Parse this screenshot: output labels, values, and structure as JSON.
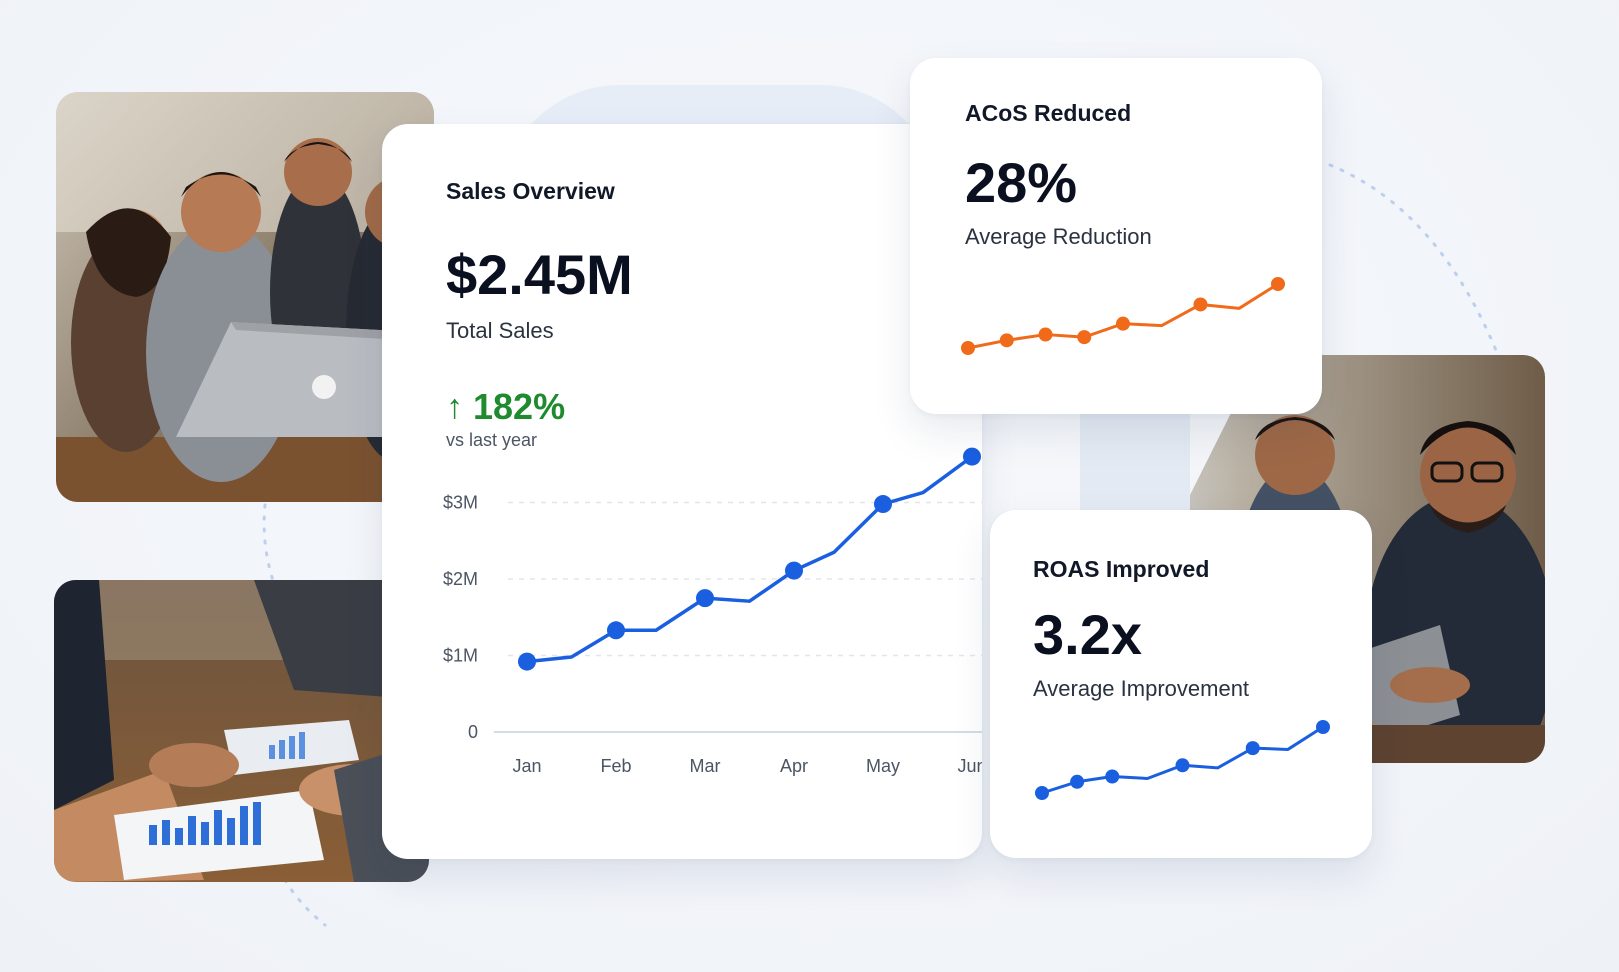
{
  "colors": {
    "primary_blue": "#1a5fe0",
    "accent_orange": "#f06a1a",
    "growth_green": "#1f8a2e",
    "text_dark": "#0b1020"
  },
  "sales_card": {
    "title": "Sales Overview",
    "value": "$2.45M",
    "value_label": "Total Sales",
    "growth": "182%",
    "growth_icon": "arrow-up-icon",
    "comparison": "vs last year"
  },
  "acos_card": {
    "title": "ACoS Reduced",
    "value": "28%",
    "label": "Average Reduction"
  },
  "roas_card": {
    "title": "ROAS Improved",
    "value": "3.2x",
    "label": "Average Improvement"
  },
  "chart_data": [
    {
      "type": "line",
      "categories": [
        "Jan",
        "Feb",
        "Mar",
        "Apr",
        "May",
        "Jun"
      ],
      "ylim": [
        0,
        3.5
      ],
      "y_ticks": [
        "0",
        "$1M",
        "$2M",
        "$3M"
      ],
      "grid": true,
      "series": [
        {
          "points": [
            {
              "x": 0.0,
              "y": 0.92,
              "marker": true
            },
            {
              "x": 0.5,
              "y": 0.98,
              "marker": false
            },
            {
              "x": 1.0,
              "y": 1.33,
              "marker": true
            },
            {
              "x": 1.45,
              "y": 1.33,
              "marker": false
            },
            {
              "x": 2.0,
              "y": 1.75,
              "marker": true
            },
            {
              "x": 2.5,
              "y": 1.71,
              "marker": false
            },
            {
              "x": 3.0,
              "y": 2.11,
              "marker": true
            },
            {
              "x": 3.45,
              "y": 2.35,
              "marker": false
            },
            {
              "x": 4.0,
              "y": 2.98,
              "marker": true
            },
            {
              "x": 4.45,
              "y": 3.13,
              "marker": false
            },
            {
              "x": 5.0,
              "y": 3.6,
              "marker": true
            }
          ]
        }
      ]
    },
    {
      "type": "line",
      "series": [
        {
          "values": [
            0.0,
            0.12,
            0.21,
            0.17,
            0.38,
            0.35,
            0.68,
            0.62,
            1.0
          ],
          "markers": [
            true,
            true,
            true,
            true,
            true,
            false,
            true,
            false,
            true
          ]
        }
      ]
    },
    {
      "type": "line",
      "series": [
        {
          "values": [
            0.0,
            0.17,
            0.25,
            0.22,
            0.42,
            0.38,
            0.68,
            0.66,
            1.0
          ],
          "markers": [
            true,
            true,
            true,
            false,
            true,
            false,
            true,
            false,
            true
          ]
        }
      ]
    }
  ]
}
